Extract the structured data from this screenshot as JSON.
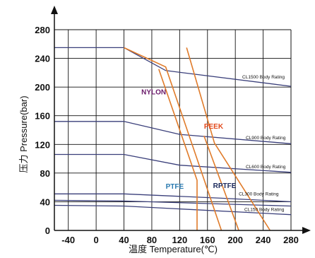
{
  "chart_data": {
    "type": "line",
    "title": "",
    "xlabel": "温度 Temperature(℃)",
    "ylabel": "压力 Pressure(bar)",
    "xlim": [
      -60,
      280
    ],
    "ylim": [
      0,
      280
    ],
    "x_ticks": [
      "-40",
      "0",
      "40",
      "80",
      "120",
      "160",
      "200",
      "240",
      "280"
    ],
    "y_ticks": [
      "0",
      "40",
      "80",
      "120",
      "160",
      "200",
      "240",
      "280"
    ],
    "grid": true,
    "series": [
      {
        "name": "CL1500 Body Rating",
        "kind": "rating",
        "color": "#3a3f7a",
        "points": [
          [
            -60,
            255
          ],
          [
            40,
            255
          ],
          [
            100,
            223
          ],
          [
            280,
            201
          ]
        ]
      },
      {
        "name": "CL900 Body Rating",
        "kind": "rating",
        "color": "#3a3f7a",
        "points": [
          [
            -60,
            152
          ],
          [
            40,
            152
          ],
          [
            120,
            134
          ],
          [
            280,
            121
          ]
        ]
      },
      {
        "name": "CL600 Body Rating",
        "kind": "rating",
        "color": "#3a3f7a",
        "points": [
          [
            -60,
            106
          ],
          [
            40,
            106
          ],
          [
            120,
            91
          ],
          [
            280,
            81
          ]
        ]
      },
      {
        "name": "CL300 Body Rating",
        "kind": "rating",
        "color": "#3a3f7a",
        "points": [
          [
            -60,
            51
          ],
          [
            40,
            51
          ],
          [
            180,
            45
          ],
          [
            280,
            40
          ]
        ]
      },
      {
        "name": "",
        "kind": "rating",
        "color": "#3a3f7a",
        "points": [
          [
            -60,
            42
          ],
          [
            40,
            41
          ],
          [
            280,
            34
          ]
        ]
      },
      {
        "name": "CL150 Body Rating",
        "kind": "rating",
        "color": "#3a3f7a",
        "points": [
          [
            -60,
            35
          ],
          [
            40,
            34
          ],
          [
            280,
            22
          ]
        ]
      },
      {
        "name": "NYLON",
        "kind": "material",
        "color": "#e07b2a",
        "points": [
          [
            40,
            255
          ],
          [
            100,
            228
          ],
          [
            180,
            0
          ]
        ]
      },
      {
        "name": "PEEK",
        "kind": "material",
        "color": "#e07b2a",
        "points": [
          [
            130,
            255
          ],
          [
            170,
            122
          ],
          [
            250,
            0
          ]
        ]
      },
      {
        "name": "PTFE",
        "kind": "material",
        "color": "#e07b2a",
        "points": [
          [
            90,
            225
          ],
          [
            145,
            70
          ],
          [
            145,
            0
          ]
        ]
      },
      {
        "name": "RPTFE",
        "kind": "material",
        "color": "#e07b2a",
        "points": [
          [
            155,
            132
          ],
          [
            205,
            0
          ]
        ]
      }
    ],
    "labels": [
      {
        "text": "CL1500 Body Rating",
        "x": 210,
        "y": 212,
        "color": "#111111",
        "class": "rating"
      },
      {
        "text": "CL900 Body Rating",
        "x": 215,
        "y": 127,
        "color": "#111111",
        "class": "rating"
      },
      {
        "text": "CL600 Body Rating",
        "x": 215,
        "y": 87,
        "color": "#111111",
        "class": "rating"
      },
      {
        "text": "CL300 Body Rating",
        "x": 205,
        "y": 49,
        "color": "#111111",
        "class": "rating"
      },
      {
        "text": "CL150 Body Rating",
        "x": 213,
        "y": 27,
        "color": "#111111",
        "class": "rating"
      },
      {
        "text": "NYLON",
        "x": 65,
        "y": 190,
        "color": "#6a1a6a",
        "class": "material"
      },
      {
        "text": "PEEK",
        "x": 155,
        "y": 142,
        "color": "#e2491b",
        "class": "material"
      },
      {
        "text": "PTFE",
        "x": 100,
        "y": 58,
        "color": "#2a7ab0",
        "class": "material"
      },
      {
        "text": "RPTFE",
        "x": 168,
        "y": 59,
        "color": "#1c2a5c",
        "class": "material"
      }
    ],
    "colors": {
      "grid": "#111111",
      "rating": "#3a3f7a",
      "material": "#e07b2a"
    }
  }
}
